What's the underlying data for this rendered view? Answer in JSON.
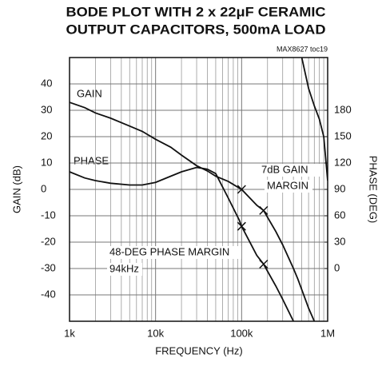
{
  "chart_data": {
    "type": "line",
    "title": [
      "BODE PLOT WITH 2 x 22μF CERAMIC",
      "OUTPUT CAPACITORS, 500mA LOAD"
    ],
    "subtitle": "MAX8627 toc19",
    "x_label": "FREQUENCY (Hz)",
    "y_label": "GAIN (dB)",
    "y2_label": "PHASE (DEG)",
    "log_x": true,
    "grid": true,
    "x": [
      1000,
      1500,
      2000,
      3000,
      5000,
      7000,
      10000,
      15000,
      20000,
      30000,
      40000,
      50000,
      70000,
      94000,
      100000,
      150000,
      180000,
      250000,
      300000,
      400000,
      450000,
      500000,
      600000,
      700000,
      800000,
      900000,
      1000000
    ],
    "series": [
      {
        "name": "GAIN",
        "color": "#111111",
        "values": [
          33,
          31,
          29,
          27,
          24,
          22,
          19,
          16,
          13,
          9,
          7,
          5,
          3,
          0.5,
          0,
          -6,
          -8,
          -16,
          -21,
          -30,
          -34,
          -38,
          -45,
          -50,
          null,
          null,
          null
        ]
      },
      {
        "name": "PHASE",
        "color": "#111111",
        "axis": "y2",
        "values": [
          110,
          103,
          100,
          97,
          95,
          95,
          98,
          105,
          110,
          115,
          113,
          108,
          80,
          55,
          48,
          15,
          5,
          -20,
          -35,
          -60,
          null,
          240,
          205,
          185,
          170,
          150,
          100
        ]
      }
    ],
    "annotations": [
      "7dB GAIN",
      "MARGIN",
      "48-DEG PHASE MARGIN",
      "94kHz"
    ],
    "xlim": [
      1000,
      1000000
    ],
    "xticks": [
      {
        "value": 1000,
        "label": "1k"
      },
      {
        "value": 10000,
        "label": "10k"
      },
      {
        "value": 100000,
        "label": "100k"
      },
      {
        "value": 1000000,
        "label": "1M"
      }
    ],
    "ylim": [
      -50,
      50
    ],
    "yticks": [
      -40,
      -30,
      -20,
      -10,
      0,
      10,
      20,
      30,
      40
    ],
    "y2lim": [
      -60,
      240
    ],
    "y2ticks": [
      0,
      30,
      60,
      90,
      120,
      150,
      180
    ]
  }
}
